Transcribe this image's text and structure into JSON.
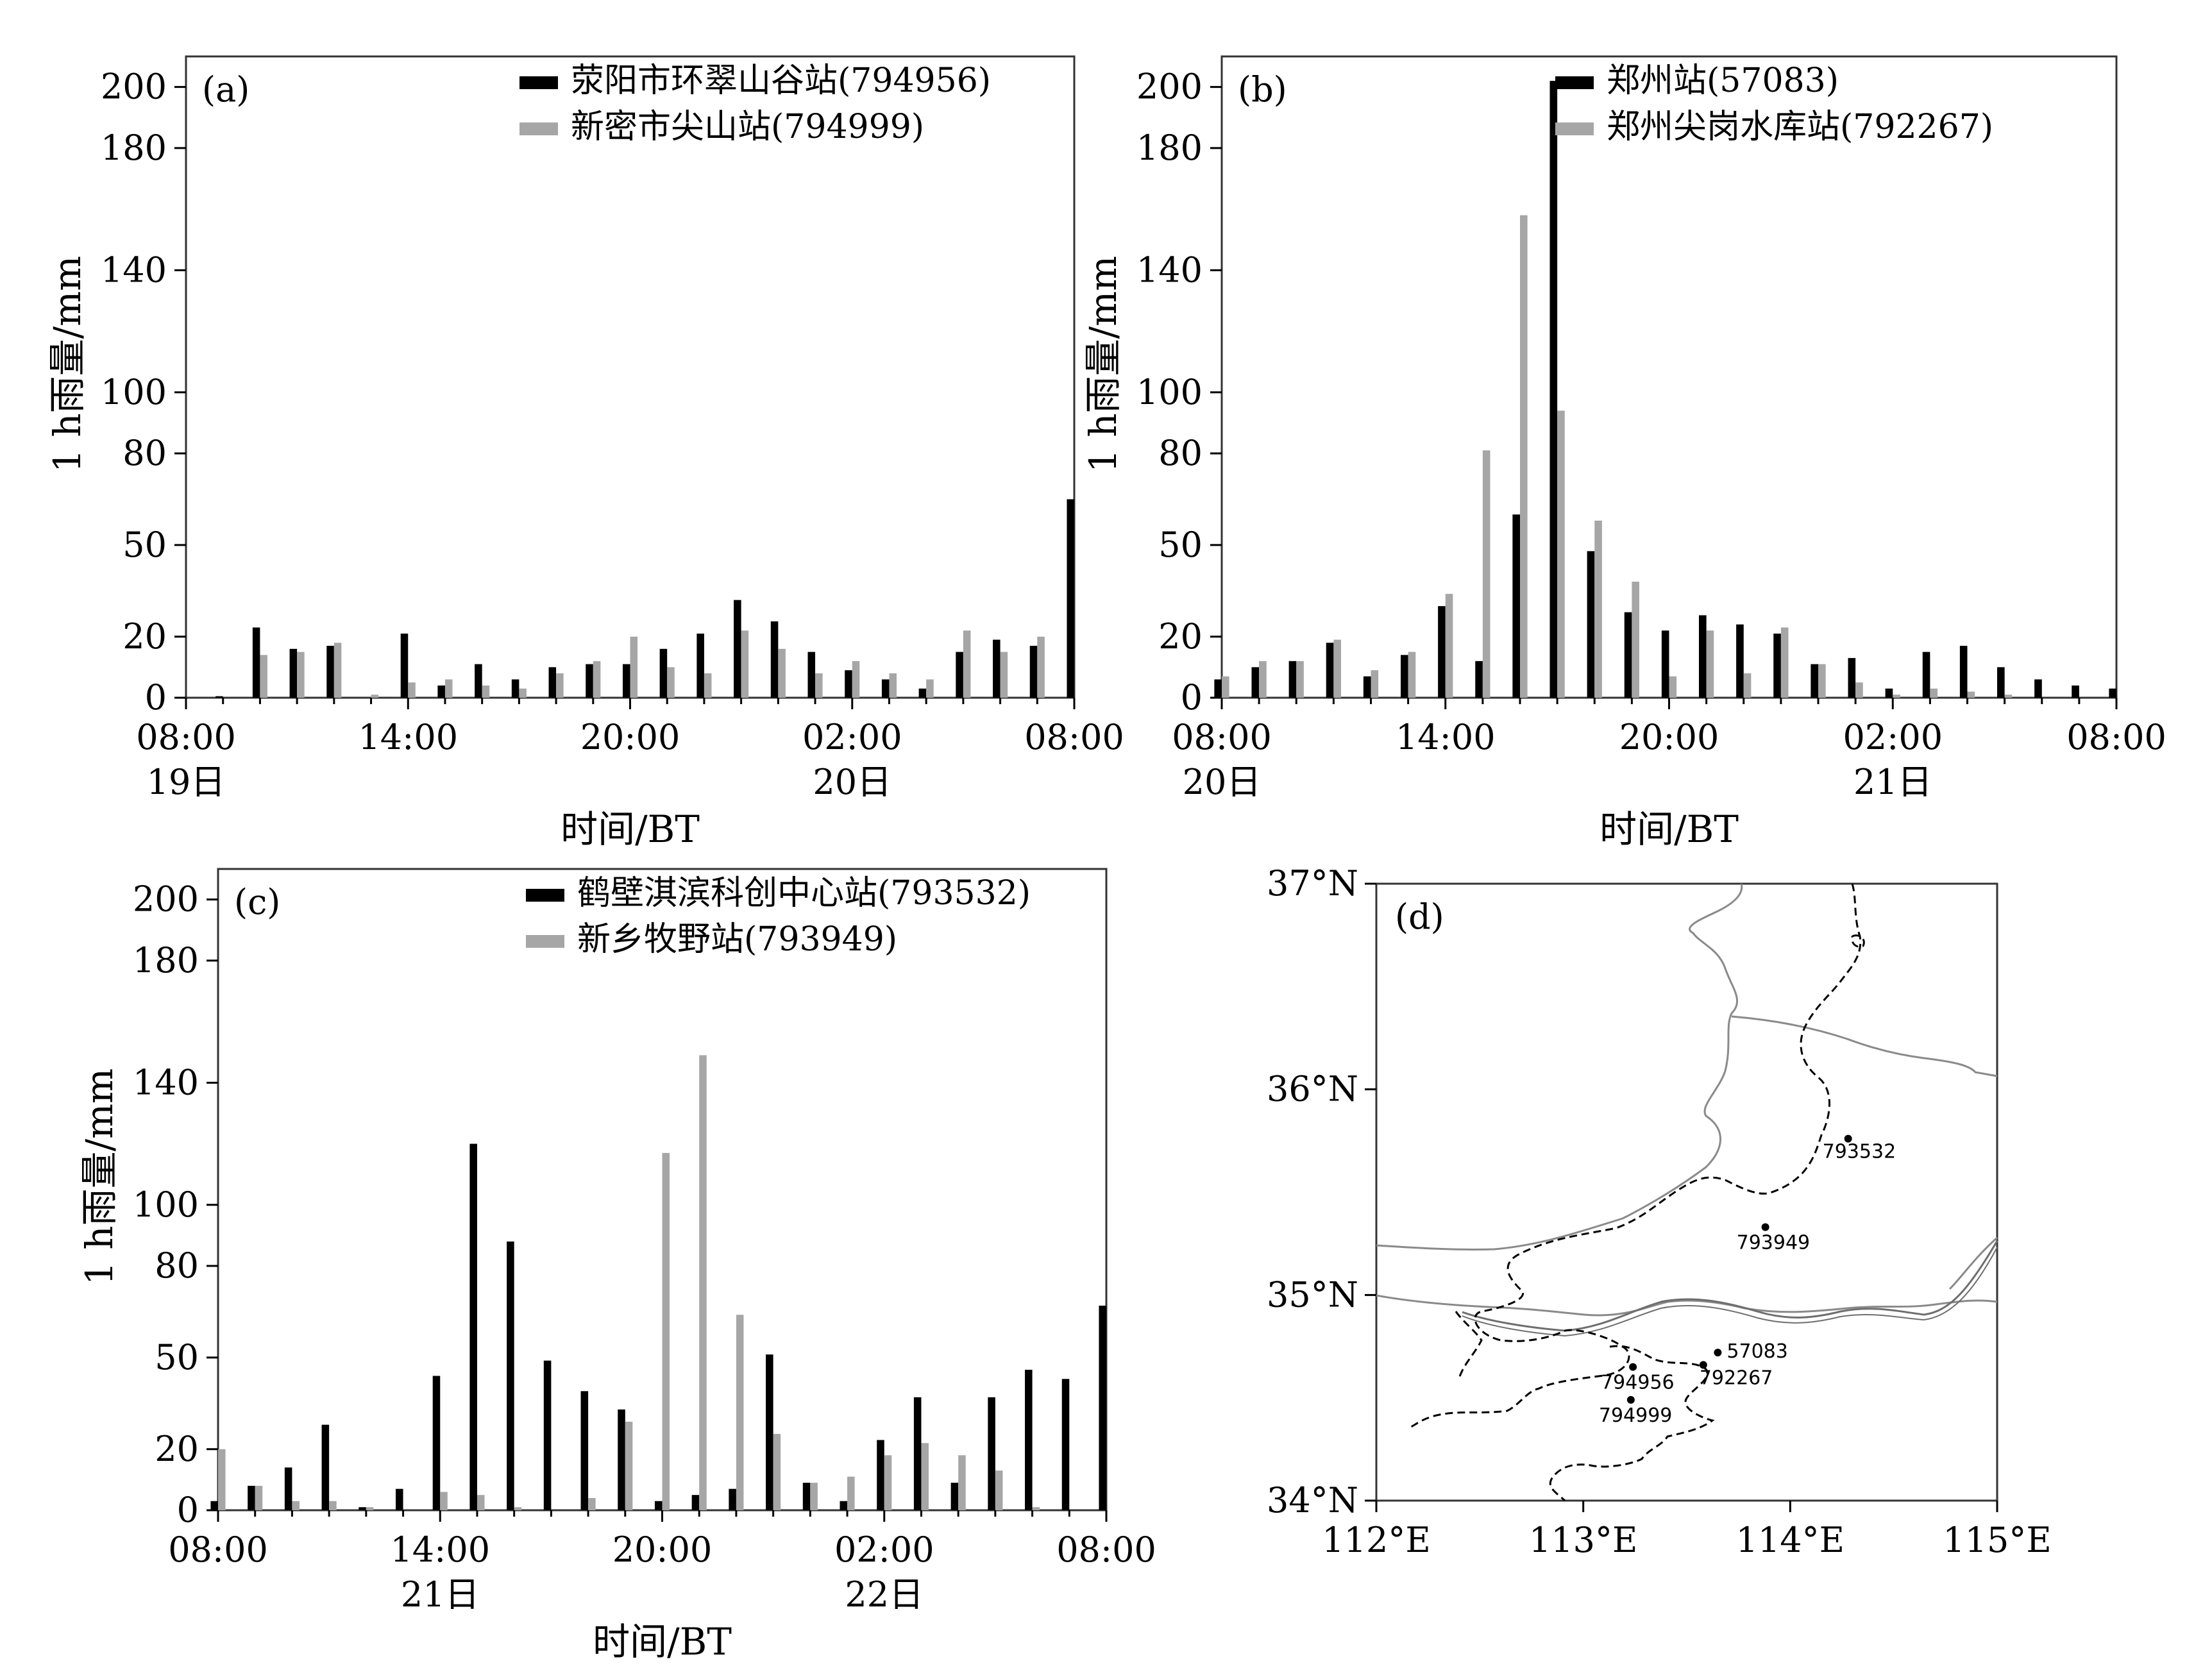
{
  "colors": {
    "series1": "#000000",
    "series2": "#a6a6a6",
    "frame": "#333333",
    "province": "#8a8a8a",
    "basin": "#000000"
  },
  "chart_data": [
    {
      "type": "bar",
      "panel_label": "(a)",
      "ylabel": "1 h雨量/mm",
      "xlabel": "时间/BT",
      "yticks": [
        0,
        20,
        50,
        80,
        100,
        140,
        180,
        200
      ],
      "ylim": [
        0,
        200
      ],
      "x_ticks": [
        {
          "label": "08:00",
          "index": 0,
          "day": "19日"
        },
        {
          "label": "14:00",
          "index": 6,
          "day": ""
        },
        {
          "label": "20:00",
          "index": 12,
          "day": ""
        },
        {
          "label": "02:00",
          "index": 18,
          "day": "20日"
        },
        {
          "label": "08:00",
          "index": 24,
          "day": ""
        }
      ],
      "series": [
        {
          "name": "荥阳市环翠山谷站(794956)",
          "values": [
            0,
            0.5,
            23,
            16,
            17,
            0,
            21,
            4,
            11,
            6,
            10,
            11,
            11,
            16,
            21,
            32,
            25,
            15,
            9,
            6,
            3,
            15,
            19,
            17,
            65
          ]
        },
        {
          "name": "新密市尖山站(794999)",
          "values": [
            0,
            0,
            14,
            15,
            18,
            1,
            5,
            6,
            4,
            3,
            8,
            12,
            20,
            10,
            8,
            22,
            16,
            8,
            12,
            8,
            6,
            22,
            15,
            20,
            0
          ]
        }
      ],
      "legend": "top-right"
    },
    {
      "type": "bar",
      "panel_label": "(b)",
      "ylabel": "1 h雨量/mm",
      "xlabel": "时间/BT",
      "yticks": [
        0,
        20,
        50,
        80,
        100,
        140,
        180,
        200
      ],
      "ylim": [
        0,
        200
      ],
      "x_ticks": [
        {
          "label": "08:00",
          "index": 0,
          "day": "20日"
        },
        {
          "label": "14:00",
          "index": 6,
          "day": ""
        },
        {
          "label": "20:00",
          "index": 12,
          "day": ""
        },
        {
          "label": "02:00",
          "index": 18,
          "day": "21日"
        },
        {
          "label": "08:00",
          "index": 24,
          "day": ""
        }
      ],
      "series": [
        {
          "name": "郑州站(57083)",
          "values": [
            6,
            10,
            12,
            18,
            7,
            14,
            30,
            12,
            60,
            202,
            48,
            28,
            22,
            27,
            24,
            21,
            11,
            13,
            3,
            15,
            17,
            10,
            6,
            4,
            3
          ]
        },
        {
          "name": "郑州尖岗水库站(792267)",
          "values": [
            7,
            12,
            12,
            19,
            9,
            15,
            34,
            81,
            158,
            94,
            58,
            38,
            7,
            22,
            8,
            23,
            11,
            5,
            1,
            3,
            2,
            1,
            0,
            0,
            0
          ]
        }
      ],
      "legend": "top-right"
    },
    {
      "type": "bar",
      "panel_label": "(c)",
      "ylabel": "1 h雨量/mm",
      "xlabel": "时间/BT",
      "yticks": [
        0,
        20,
        50,
        80,
        100,
        140,
        180,
        200
      ],
      "ylim": [
        0,
        200
      ],
      "x_ticks": [
        {
          "label": "08:00",
          "index": 0,
          "day": ""
        },
        {
          "label": "14:00",
          "index": 6,
          "day": "21日"
        },
        {
          "label": "20:00",
          "index": 12,
          "day": ""
        },
        {
          "label": "02:00",
          "index": 18,
          "day": "22日"
        },
        {
          "label": "08:00",
          "index": 24,
          "day": ""
        }
      ],
      "series": [
        {
          "name": "鹤壁淇滨科创中心站(793532)",
          "values": [
            3,
            8,
            14,
            28,
            1,
            7,
            44,
            120,
            88,
            49,
            39,
            33,
            3,
            5,
            7,
            51,
            9,
            3,
            23,
            37,
            9,
            37,
            46,
            43,
            67
          ]
        },
        {
          "name": "新乡牧野站(793949)",
          "values": [
            20,
            8,
            3,
            3,
            1,
            0,
            6,
            5,
            1,
            0,
            4,
            29,
            117,
            149,
            64,
            25,
            9,
            11,
            18,
            22,
            18,
            13,
            1,
            0,
            0
          ]
        }
      ],
      "legend": "top-right"
    }
  ],
  "map": {
    "panel_label": "(d)",
    "lon_ticks": [
      "112°E",
      "113°E",
      "114°E",
      "115°E"
    ],
    "lat_ticks": [
      "34°N",
      "35°N",
      "36°N",
      "37°N"
    ],
    "lon_range": [
      112,
      115
    ],
    "lat_range": [
      34,
      37
    ],
    "stations": [
      {
        "id": "793532",
        "lon": 114.28,
        "lat": 35.76
      },
      {
        "id": "793949",
        "lon": 113.88,
        "lat": 35.33
      },
      {
        "id": "57083",
        "lon": 113.65,
        "lat": 34.72
      },
      {
        "id": "792267",
        "lon": 113.58,
        "lat": 34.66
      },
      {
        "id": "794956",
        "lon": 113.24,
        "lat": 34.65
      },
      {
        "id": "794999",
        "lon": 113.23,
        "lat": 34.49
      }
    ]
  }
}
